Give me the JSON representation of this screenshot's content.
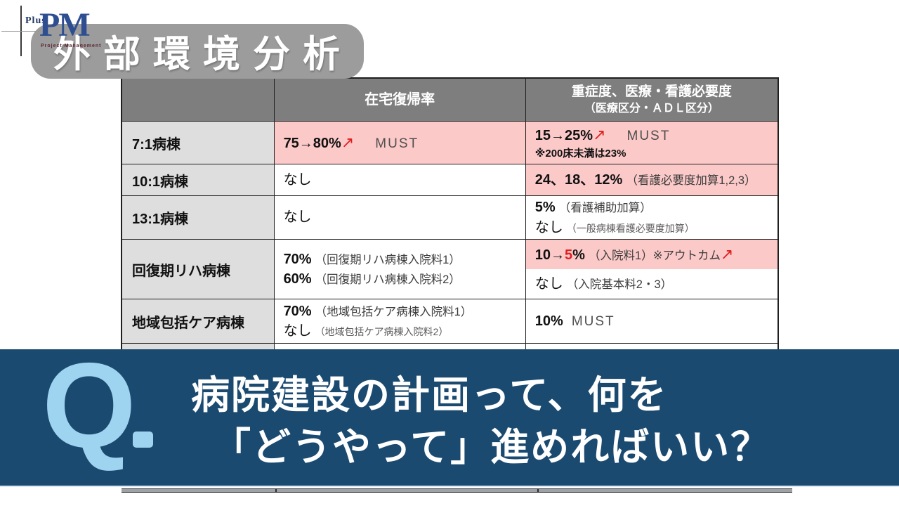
{
  "logo": {
    "plus": "Plus",
    "pm": "PM",
    "subtitle": "Project Management"
  },
  "badge": {
    "title": "外部環境分析"
  },
  "table": {
    "header": {
      "col2": "在宅復帰率",
      "col3_line1": "重症度、医療・看護必要度",
      "col3_line2": "（医療区分・ＡＤＬ区分）"
    },
    "rows": [
      {
        "label": "7:1病棟",
        "cells": [
          [
            {
              "bg": "pink",
              "lines": [
                [
                  {
                    "t": "75→80%",
                    "c": "b"
                  },
                  {
                    "t": "↗",
                    "c": "arrow"
                  },
                  {
                    "t": "MUST",
                    "c": "must gap"
                  }
                ]
              ]
            }
          ],
          [
            {
              "bg": "pink",
              "lines": [
                [
                  {
                    "t": "15→25%",
                    "c": "b"
                  },
                  {
                    "t": "↗",
                    "c": "arrow"
                  },
                  {
                    "t": "MUST",
                    "c": "must gap"
                  }
                ],
                [
                  {
                    "t": "※200床未満は23%",
                    "c": "b small"
                  }
                ]
              ]
            }
          ]
        ]
      },
      {
        "label": "10:1病棟",
        "cells": [
          [
            {
              "bg": "white",
              "lines": [
                [
                  {
                    "t": "なし",
                    "c": ""
                  }
                ]
              ]
            }
          ],
          [
            {
              "bg": "pink",
              "lines": [
                [
                  {
                    "t": "24、18、12%",
                    "c": "b"
                  },
                  {
                    "t": "（看護必要度加算1,2,3）",
                    "c": "p1 gapxs"
                  }
                ]
              ]
            }
          ]
        ]
      },
      {
        "label": "13:1病棟",
        "cells": [
          [
            {
              "bg": "white",
              "lines": [
                [
                  {
                    "t": "なし",
                    "c": ""
                  }
                ]
              ]
            }
          ],
          [
            {
              "bg": "white",
              "lines": [
                [
                  {
                    "t": "5%",
                    "c": "b"
                  },
                  {
                    "t": "（看護補助加算）",
                    "c": "p1 gapxs"
                  }
                ],
                [
                  {
                    "t": "なし",
                    "c": ""
                  },
                  {
                    "t": "（一般病棟看護必要度加算）",
                    "c": "p2 gapxs"
                  }
                ]
              ]
            }
          ]
        ]
      },
      {
        "label": "回復期リハ病棟",
        "cells": [
          [
            {
              "bg": "white",
              "lines": [
                [
                  {
                    "t": "70%",
                    "c": "b"
                  },
                  {
                    "t": "（回復期リハ病棟入院料1）",
                    "c": "p1 gapxs"
                  }
                ],
                [
                  {
                    "t": "60%",
                    "c": "b"
                  },
                  {
                    "t": "（回復期リハ病棟入院料2）",
                    "c": "p1 gapxs"
                  }
                ]
              ]
            }
          ],
          [
            {
              "bg": "pink",
              "lines": [
                [
                  {
                    "t": "10→",
                    "c": "b"
                  },
                  {
                    "t": "5",
                    "c": "b red"
                  },
                  {
                    "t": "%",
                    "c": "b"
                  },
                  {
                    "t": "（入院料1）※アウトカム",
                    "c": "p1 gapxs"
                  },
                  {
                    "t": "↗",
                    "c": "arrow"
                  }
                ]
              ]
            },
            {
              "bg": "white",
              "lines": [
                [
                  {
                    "t": "なし",
                    "c": ""
                  },
                  {
                    "t": "（入院基本料2・3）",
                    "c": "p1 gapxs"
                  }
                ]
              ]
            }
          ]
        ]
      },
      {
        "label": "地域包括ケア病棟",
        "cells": [
          [
            {
              "bg": "white",
              "lines": [
                [
                  {
                    "t": "70%",
                    "c": "b"
                  },
                  {
                    "t": "（地域包括ケア病棟入院料1）",
                    "c": "p1 gapxs"
                  }
                ],
                [
                  {
                    "t": "なし",
                    "c": ""
                  },
                  {
                    "t": "（地域包括ケア病棟入院料2）",
                    "c": "p2 gapxs"
                  }
                ]
              ]
            }
          ],
          [
            {
              "bg": "white",
              "lines": [
                [
                  {
                    "t": "10%",
                    "c": "b"
                  },
                  {
                    "t": "MUST",
                    "c": "must gapsm"
                  }
                ]
              ]
            }
          ]
        ]
      },
      {
        "label": "",
        "cells": [
          [
            {
              "bg": "white",
              "lines": []
            }
          ],
          [
            {
              "bg": "white",
              "lines": []
            }
          ]
        ]
      }
    ]
  },
  "question": {
    "q_label": "Q",
    "line1": "病院建設の計画って、何を",
    "line2": "「どうやって」進めればいい？"
  },
  "colors": {
    "banner": "#1B4A70",
    "q_blue": "#9FD4F0",
    "pink": "#FCC9C9",
    "accent_red": "#DF1F1F",
    "header_gray": "#7E7E7E",
    "label_gray": "#DEDEDE",
    "badge_gray": "#9C9C9C"
  }
}
